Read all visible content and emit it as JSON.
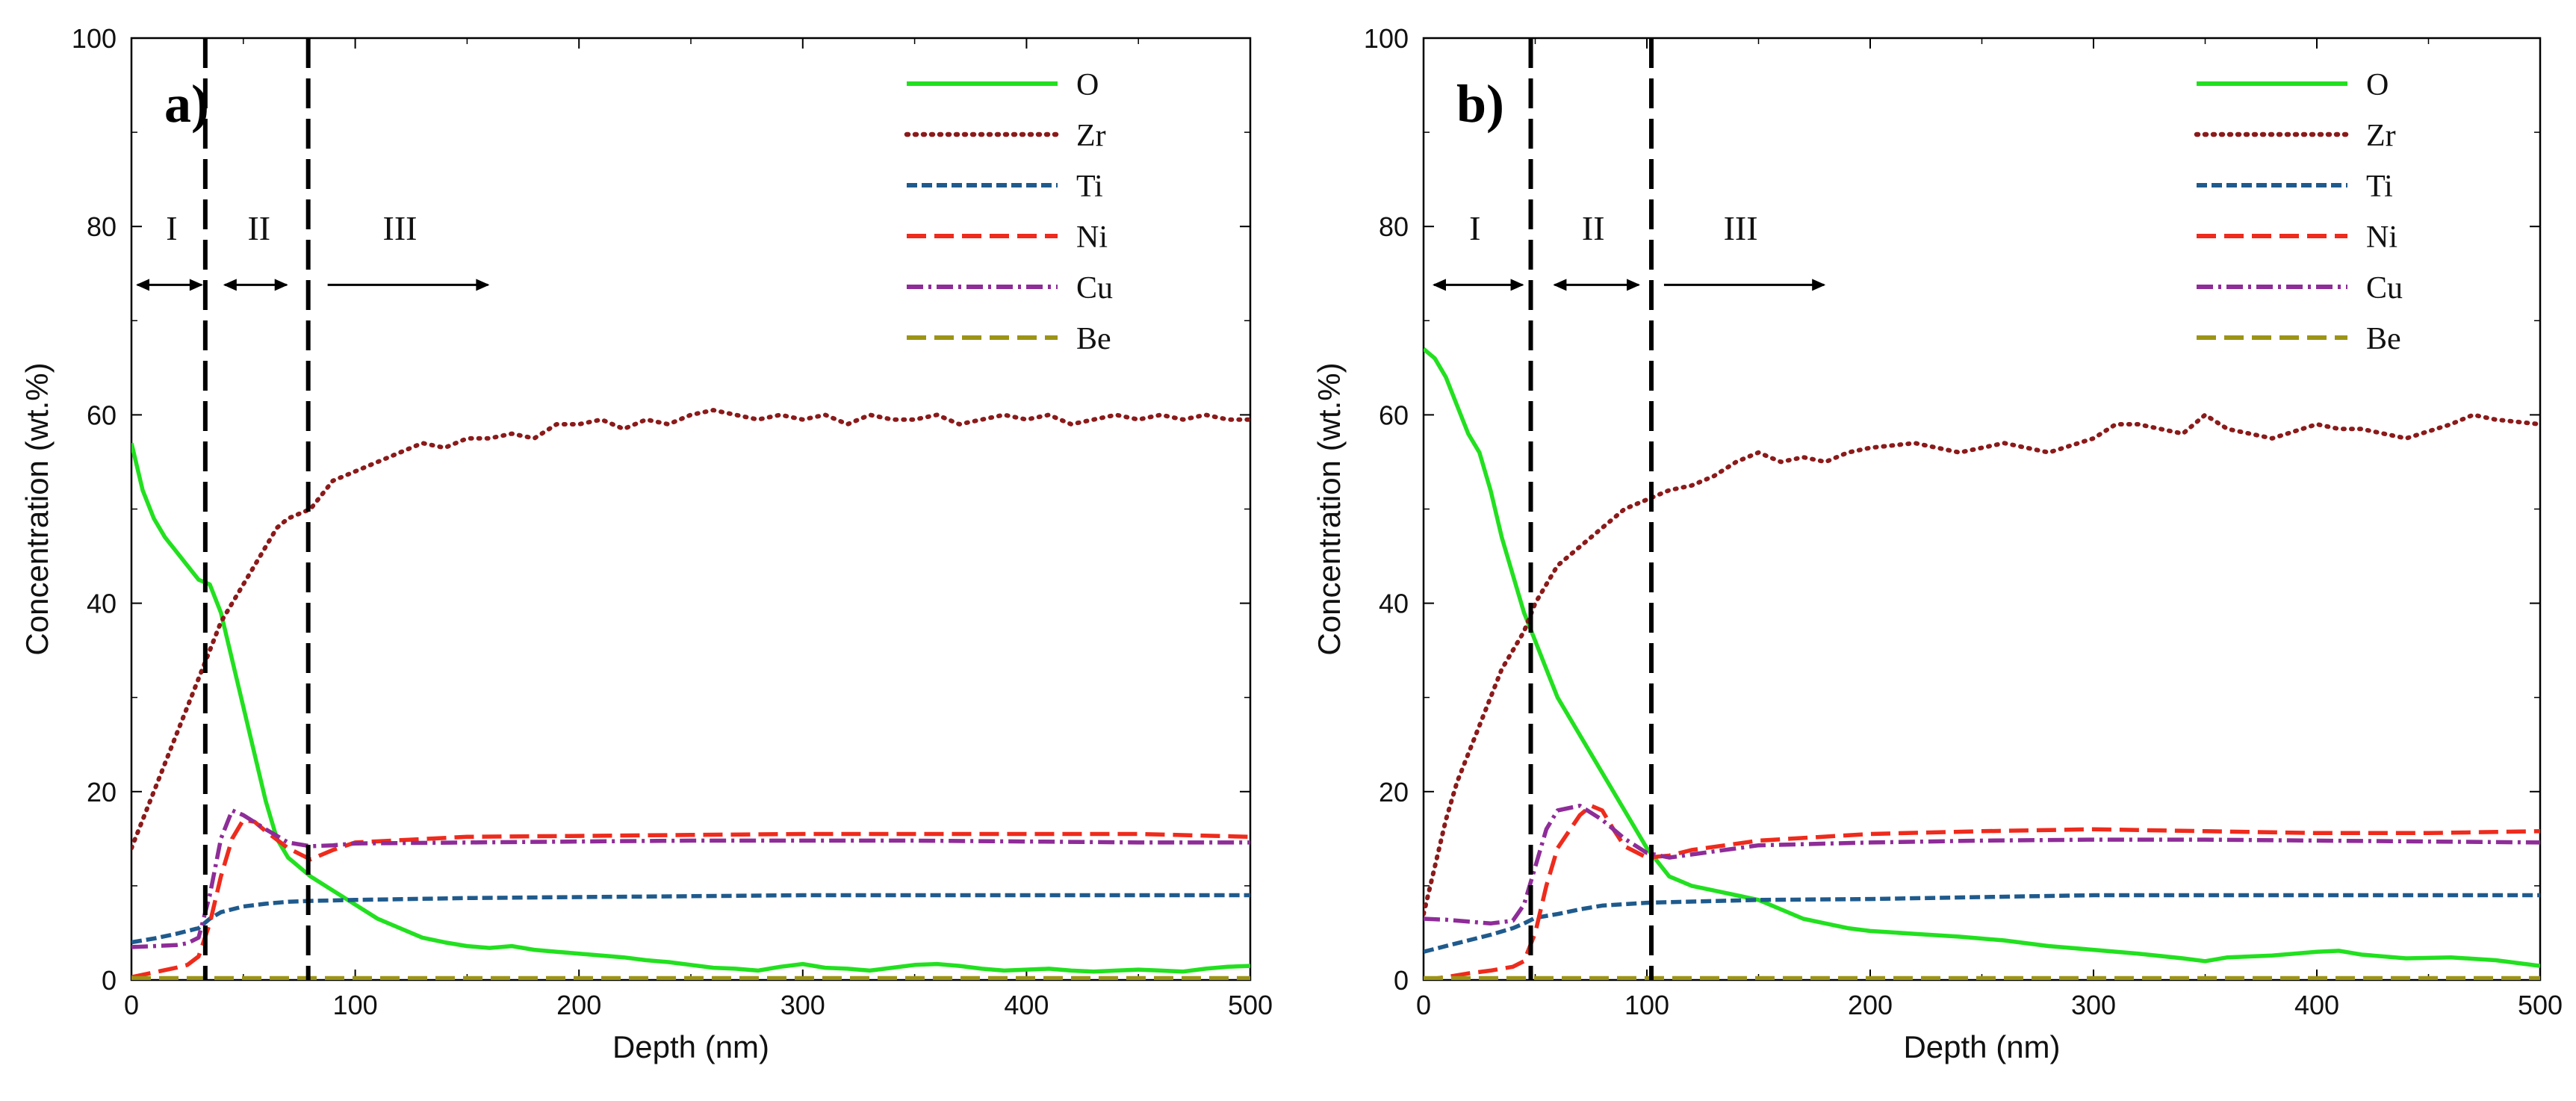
{
  "chart_data": [
    {
      "type": "line",
      "panel_label": "a)",
      "xlabel": "Depth (nm)",
      "ylabel": "Concentration (wt.%)",
      "xlim": [
        0,
        500
      ],
      "ylim": [
        0,
        100
      ],
      "x_ticks": [
        "0",
        "100",
        "200",
        "300",
        "400",
        "500"
      ],
      "y_ticks": [
        "0",
        "20",
        "40",
        "60",
        "80",
        "100"
      ],
      "grid": false,
      "legend_position": "top-right",
      "region_boundaries": [
        33,
        79
      ],
      "regions": [
        {
          "label": "I",
          "from": 2,
          "to": 32,
          "label_x": 18
        },
        {
          "label": "II",
          "from": 41,
          "to": 70,
          "label_x": 57
        },
        {
          "label": "III",
          "from": 87,
          "to": 160,
          "label_x": 120
        }
      ],
      "series": [
        {
          "name": "O",
          "color": "#22e01f",
          "style": "solid",
          "x": [
            0,
            5,
            10,
            15,
            20,
            25,
            30,
            35,
            40,
            45,
            50,
            55,
            60,
            65,
            70,
            75,
            80,
            90,
            100,
            110,
            120,
            130,
            140,
            150,
            160,
            170,
            180,
            190,
            200,
            210,
            220,
            230,
            240,
            250,
            260,
            270,
            280,
            290,
            300,
            310,
            320,
            330,
            340,
            350,
            360,
            370,
            380,
            390,
            400,
            410,
            420,
            430,
            440,
            450,
            460,
            470,
            480,
            490,
            500
          ],
          "y": [
            57,
            52,
            49,
            47,
            45.5,
            44,
            42.5,
            42,
            39,
            34,
            29,
            24,
            19,
            15,
            13,
            12,
            11,
            9.5,
            8,
            6.5,
            5.5,
            4.5,
            4,
            3.6,
            3.4,
            3.6,
            3.2,
            3,
            2.8,
            2.6,
            2.4,
            2.1,
            1.9,
            1.6,
            1.3,
            1.2,
            1,
            1.4,
            1.7,
            1.3,
            1.2,
            1,
            1.3,
            1.6,
            1.7,
            1.5,
            1.2,
            1,
            1.1,
            1.2,
            1,
            0.9,
            1,
            1.1,
            1,
            0.9,
            1.2,
            1.4,
            1.5
          ]
        },
        {
          "name": "Zr",
          "color": "#8b1a1a",
          "style": "dotted",
          "x": [
            0,
            5,
            10,
            15,
            20,
            25,
            30,
            35,
            40,
            45,
            50,
            55,
            60,
            65,
            70,
            75,
            80,
            90,
            100,
            110,
            120,
            130,
            140,
            150,
            160,
            170,
            180,
            190,
            200,
            210,
            220,
            230,
            240,
            250,
            260,
            270,
            280,
            290,
            300,
            310,
            320,
            330,
            340,
            350,
            360,
            370,
            380,
            390,
            400,
            410,
            420,
            430,
            440,
            450,
            460,
            470,
            480,
            490,
            500
          ],
          "y": [
            14,
            17,
            20,
            23,
            26,
            29,
            32,
            35,
            38,
            40,
            42,
            44,
            46,
            48,
            49,
            49.5,
            50,
            53,
            54,
            55,
            56,
            57,
            56.5,
            57.5,
            57.5,
            58,
            57.5,
            59,
            59,
            59.5,
            58.5,
            59.5,
            59,
            60,
            60.5,
            60,
            59.5,
            60,
            59.5,
            60,
            59,
            60,
            59.5,
            59.5,
            60,
            59,
            59.5,
            60,
            59.5,
            60,
            59,
            59.5,
            60,
            59.5,
            60,
            59.5,
            60,
            59.5,
            59.5
          ]
        },
        {
          "name": "Ti",
          "color": "#1f5a8c",
          "style": "dashed",
          "x": [
            0,
            10,
            20,
            30,
            35,
            40,
            50,
            60,
            70,
            80,
            100,
            150,
            200,
            250,
            300,
            350,
            400,
            450,
            500
          ],
          "y": [
            4,
            4.4,
            4.9,
            5.5,
            6.5,
            7.2,
            7.8,
            8.1,
            8.3,
            8.4,
            8.5,
            8.7,
            8.8,
            8.9,
            9,
            9,
            9,
            9,
            9
          ]
        },
        {
          "name": "Ni",
          "color": "#ee2b1c",
          "style": "longdash",
          "x": [
            0,
            10,
            20,
            25,
            30,
            35,
            40,
            45,
            50,
            55,
            60,
            70,
            80,
            90,
            100,
            150,
            200,
            250,
            300,
            350,
            400,
            450,
            500
          ],
          "y": [
            0.3,
            0.8,
            1.3,
            1.6,
            2.5,
            6,
            11,
            15,
            17,
            16.8,
            15.8,
            14,
            12.8,
            13.8,
            14.6,
            15.2,
            15.3,
            15.4,
            15.5,
            15.5,
            15.5,
            15.5,
            15.2
          ]
        },
        {
          "name": "Cu",
          "color": "#8e2c98",
          "style": "dashdot",
          "x": [
            0,
            10,
            20,
            25,
            30,
            35,
            40,
            45,
            50,
            60,
            70,
            80,
            90,
            100,
            150,
            200,
            250,
            300,
            350,
            400,
            450,
            500
          ],
          "y": [
            3.5,
            3.6,
            3.7,
            3.9,
            4.5,
            9,
            15,
            18,
            17.5,
            16,
            14.6,
            14.2,
            14.3,
            14.5,
            14.6,
            14.7,
            14.8,
            14.8,
            14.8,
            14.7,
            14.6,
            14.6
          ]
        },
        {
          "name": "Be",
          "color": "#9c9416",
          "style": "longdash",
          "x": [
            0,
            500
          ],
          "y": [
            0.2,
            0.2
          ]
        }
      ]
    },
    {
      "type": "line",
      "panel_label": "b)",
      "xlabel": "Depth (nm)",
      "ylabel": "Concentration (wt.%)",
      "xlim": [
        0,
        500
      ],
      "ylim": [
        0,
        100
      ],
      "x_ticks": [
        "0",
        "100",
        "200",
        "300",
        "400",
        "500"
      ],
      "y_ticks": [
        "0",
        "20",
        "40",
        "60",
        "80",
        "100"
      ],
      "grid": false,
      "legend_position": "top-right",
      "region_boundaries": [
        48,
        102
      ],
      "regions": [
        {
          "label": "I",
          "from": 4,
          "to": 45,
          "label_x": 23
        },
        {
          "label": "II",
          "from": 58,
          "to": 97,
          "label_x": 76
        },
        {
          "label": "III",
          "from": 107,
          "to": 180,
          "label_x": 142
        }
      ],
      "series": [
        {
          "name": "O",
          "color": "#22e01f",
          "style": "solid",
          "x": [
            0,
            5,
            10,
            15,
            20,
            25,
            30,
            35,
            40,
            45,
            50,
            55,
            60,
            70,
            80,
            90,
            100,
            110,
            120,
            130,
            140,
            150,
            160,
            170,
            180,
            190,
            200,
            220,
            240,
            260,
            280,
            300,
            320,
            340,
            350,
            360,
            380,
            400,
            410,
            420,
            440,
            460,
            480,
            500
          ],
          "y": [
            67,
            66,
            64,
            61,
            58,
            56,
            52,
            47,
            43,
            39,
            36,
            33,
            30,
            26,
            22,
            18,
            14,
            11,
            10,
            9.5,
            9,
            8.5,
            7.5,
            6.5,
            6,
            5.5,
            5.2,
            4.9,
            4.6,
            4.2,
            3.6,
            3.2,
            2.8,
            2.3,
            2,
            2.4,
            2.6,
            3,
            3.1,
            2.7,
            2.3,
            2.4,
            2.1,
            1.5
          ]
        },
        {
          "name": "Zr",
          "color": "#8b1a1a",
          "style": "dotted",
          "x": [
            0,
            5,
            10,
            15,
            20,
            25,
            30,
            35,
            40,
            45,
            50,
            55,
            60,
            70,
            80,
            90,
            100,
            110,
            120,
            130,
            140,
            150,
            160,
            170,
            180,
            190,
            200,
            220,
            240,
            260,
            280,
            300,
            310,
            320,
            340,
            350,
            360,
            370,
            380,
            400,
            410,
            420,
            440,
            460,
            470,
            480,
            500
          ],
          "y": [
            7,
            12,
            17,
            21,
            24,
            27,
            30,
            33,
            35,
            37,
            40,
            42,
            44,
            46,
            48,
            50,
            51,
            52,
            52.5,
            53.5,
            55,
            56,
            55,
            55.5,
            55,
            56,
            56.5,
            57,
            56,
            57,
            56,
            57.5,
            59,
            59,
            58,
            60,
            58.5,
            58,
            57.5,
            59,
            58.5,
            58.5,
            57.5,
            59,
            60,
            59.5,
            59
          ]
        },
        {
          "name": "Ti",
          "color": "#1f5a8c",
          "style": "dashed",
          "x": [
            0,
            10,
            20,
            30,
            40,
            45,
            50,
            60,
            70,
            80,
            100,
            150,
            200,
            250,
            300,
            350,
            400,
            450,
            500
          ],
          "y": [
            3,
            3.6,
            4.2,
            4.8,
            5.5,
            6,
            6.6,
            7,
            7.5,
            7.9,
            8.2,
            8.5,
            8.6,
            8.8,
            9,
            9,
            9,
            9,
            9
          ]
        },
        {
          "name": "Ni",
          "color": "#ee2b1c",
          "style": "longdash",
          "x": [
            0,
            10,
            20,
            30,
            40,
            45,
            50,
            55,
            60,
            70,
            75,
            80,
            85,
            90,
            100,
            110,
            120,
            150,
            200,
            250,
            300,
            350,
            400,
            450,
            500
          ],
          "y": [
            0,
            0.3,
            0.7,
            1,
            1.4,
            2,
            5,
            10,
            14,
            17.5,
            18.5,
            18,
            16,
            14.2,
            13,
            13.2,
            13.8,
            14.8,
            15.5,
            15.8,
            16,
            15.8,
            15.6,
            15.6,
            15.8
          ]
        },
        {
          "name": "Cu",
          "color": "#8e2c98",
          "style": "dashdot",
          "x": [
            0,
            10,
            20,
            30,
            40,
            45,
            50,
            55,
            60,
            70,
            80,
            90,
            100,
            110,
            150,
            200,
            250,
            300,
            350,
            400,
            450,
            500
          ],
          "y": [
            6.5,
            6.4,
            6.2,
            6,
            6.3,
            8,
            12,
            16,
            18,
            18.5,
            17,
            15,
            13.5,
            13,
            14.3,
            14.6,
            14.8,
            14.9,
            14.9,
            14.8,
            14.7,
            14.6
          ]
        },
        {
          "name": "Be",
          "color": "#9c9416",
          "style": "longdash",
          "x": [
            0,
            500
          ],
          "y": [
            0.2,
            0.2
          ]
        }
      ]
    }
  ]
}
